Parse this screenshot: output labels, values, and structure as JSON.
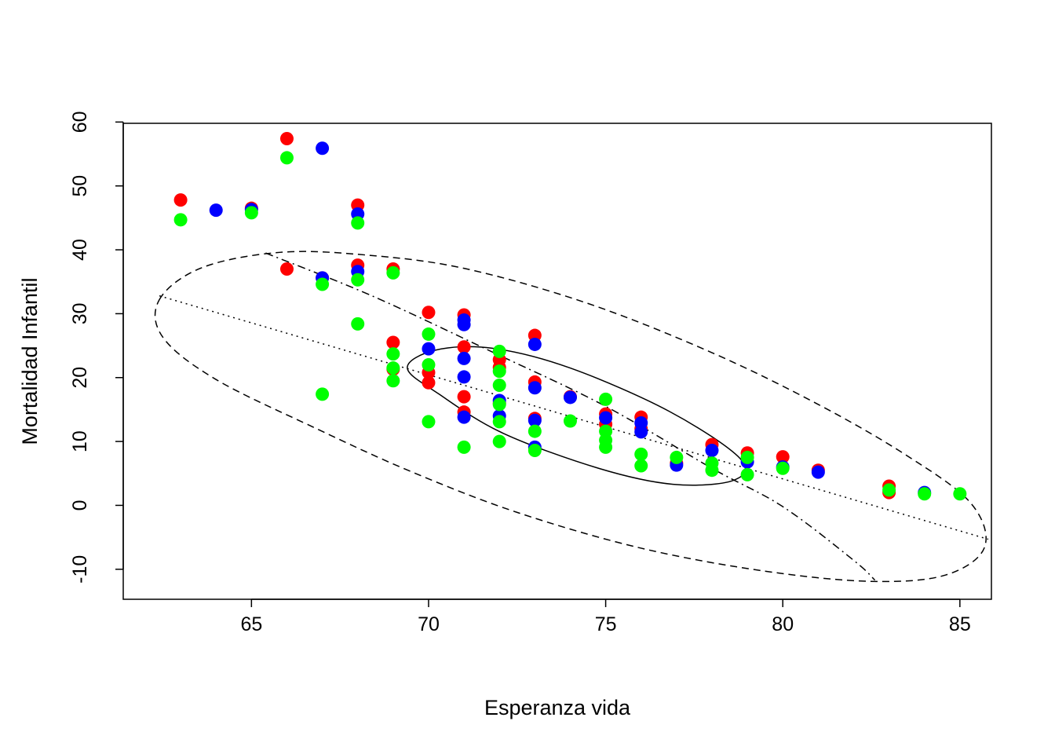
{
  "chart_data": {
    "type": "scatter",
    "title": "",
    "xlabel": "Esperanza vida",
    "ylabel": "Mortalidad Infantil",
    "xlim": [
      61.38,
      85.89
    ],
    "ylim": [
      -14.7,
      59.8
    ],
    "xticks": [
      65,
      70,
      75,
      80,
      85
    ],
    "yticks": [
      -10,
      0,
      10,
      20,
      30,
      40,
      50,
      60
    ],
    "grid": false,
    "legend": "none",
    "colors": {
      "red": "#FF0000",
      "blue": "#0000FF",
      "green": "#00FF00"
    },
    "series": [
      {
        "color": "#FF0000",
        "points": [
          [
            63,
            47.8
          ],
          [
            65,
            46.5
          ],
          [
            66,
            57.4
          ],
          [
            66,
            37.0
          ],
          [
            67,
            35.6
          ],
          [
            68,
            47.0
          ],
          [
            68,
            37.6
          ],
          [
            69,
            37.0
          ],
          [
            69,
            25.5
          ],
          [
            69,
            21.3
          ],
          [
            70,
            30.2
          ],
          [
            70,
            20.8
          ],
          [
            70,
            19.2
          ],
          [
            71,
            29.8
          ],
          [
            71,
            24.8
          ],
          [
            71,
            17.0
          ],
          [
            71,
            14.6
          ],
          [
            72,
            22.8
          ],
          [
            72,
            21.6
          ],
          [
            72,
            16.0
          ],
          [
            73,
            26.6
          ],
          [
            73,
            19.3
          ],
          [
            73,
            13.6
          ],
          [
            74,
            17.0
          ],
          [
            75,
            14.3
          ],
          [
            75,
            12.7
          ],
          [
            76,
            13.8
          ],
          [
            76,
            12.0
          ],
          [
            77,
            6.6
          ],
          [
            78,
            9.5
          ],
          [
            79,
            8.2
          ],
          [
            80,
            7.6
          ],
          [
            81,
            5.5
          ],
          [
            83,
            3.0
          ],
          [
            83,
            2.0
          ]
        ]
      },
      {
        "color": "#0000FF",
        "points": [
          [
            64,
            46.2
          ],
          [
            65,
            46.3
          ],
          [
            67,
            55.9
          ],
          [
            67,
            35.6
          ],
          [
            68,
            45.6
          ],
          [
            68,
            36.6
          ],
          [
            70,
            24.5
          ],
          [
            71,
            29.0
          ],
          [
            71,
            28.3
          ],
          [
            71,
            23.0
          ],
          [
            71,
            20.1
          ],
          [
            71,
            13.8
          ],
          [
            72,
            16.4
          ],
          [
            72,
            14.0
          ],
          [
            73,
            25.2
          ],
          [
            73,
            18.4
          ],
          [
            73,
            13.3
          ],
          [
            73,
            9.1
          ],
          [
            74,
            16.9
          ],
          [
            75,
            13.7
          ],
          [
            76,
            12.9
          ],
          [
            76,
            11.5
          ],
          [
            77,
            6.3
          ],
          [
            78,
            8.6
          ],
          [
            79,
            6.8
          ],
          [
            80,
            6.0
          ],
          [
            81,
            5.2
          ],
          [
            84,
            2.0
          ]
        ]
      },
      {
        "color": "#00FF00",
        "points": [
          [
            63,
            44.7
          ],
          [
            65,
            45.8
          ],
          [
            66,
            54.4
          ],
          [
            67,
            34.6
          ],
          [
            67,
            17.4
          ],
          [
            68,
            44.2
          ],
          [
            68,
            35.3
          ],
          [
            68,
            28.4
          ],
          [
            69,
            36.4
          ],
          [
            69,
            23.7
          ],
          [
            69,
            21.5
          ],
          [
            69,
            19.5
          ],
          [
            70,
            26.8
          ],
          [
            70,
            22.0
          ],
          [
            70,
            13.1
          ],
          [
            71,
            9.1
          ],
          [
            72,
            24.1
          ],
          [
            72,
            21.0
          ],
          [
            72,
            18.8
          ],
          [
            72,
            15.8
          ],
          [
            72,
            13.1
          ],
          [
            72,
            10.0
          ],
          [
            73,
            11.6
          ],
          [
            73,
            8.6
          ],
          [
            74,
            13.2
          ],
          [
            75,
            16.6
          ],
          [
            75,
            11.6
          ],
          [
            75,
            10.2
          ],
          [
            75,
            9.1
          ],
          [
            76,
            8.0
          ],
          [
            76,
            6.2
          ],
          [
            77,
            7.5
          ],
          [
            78,
            6.6
          ],
          [
            78,
            5.5
          ],
          [
            79,
            7.5
          ],
          [
            79,
            4.8
          ],
          [
            80,
            5.8
          ],
          [
            83,
            2.4
          ],
          [
            84,
            1.8
          ],
          [
            85,
            1.8
          ]
        ]
      }
    ],
    "ellipses": [
      {
        "style": "solid",
        "path": [
          [
            69.4,
            21.5
          ],
          [
            70.2,
            24.3
          ],
          [
            71.8,
            24.6
          ],
          [
            74.0,
            21.5
          ],
          [
            76.8,
            14.7
          ],
          [
            78.8,
            7.3
          ],
          [
            78.6,
            3.9
          ],
          [
            76.9,
            3.3
          ],
          [
            74.8,
            5.8
          ],
          [
            72.1,
            11.3
          ],
          [
            70.3,
            17.4
          ],
          [
            69.4,
            21.5
          ]
        ]
      },
      {
        "style": "dashed",
        "path": [
          [
            62.4,
            32.2
          ],
          [
            63.6,
            37.2
          ],
          [
            65.8,
            39.6
          ],
          [
            68.2,
            39.2
          ],
          [
            71.0,
            37.1
          ],
          [
            74.5,
            31.6
          ],
          [
            78.0,
            23.9
          ],
          [
            81.0,
            15.8
          ],
          [
            83.5,
            7.8
          ],
          [
            85.3,
            0.4
          ],
          [
            85.7,
            -6.5
          ],
          [
            84.6,
            -10.9
          ],
          [
            82.5,
            -11.9
          ],
          [
            79.5,
            -10.3
          ],
          [
            76.0,
            -6.7
          ],
          [
            72.5,
            -1.1
          ],
          [
            69.5,
            5.3
          ],
          [
            66.8,
            12.1
          ],
          [
            64.0,
            19.7
          ],
          [
            62.5,
            26.3
          ],
          [
            62.4,
            32.2
          ]
        ]
      }
    ],
    "lines": [
      {
        "style": "dotted",
        "points": [
          [
            62.4,
            32.8
          ],
          [
            85.8,
            -5.3
          ]
        ]
      },
      {
        "style": "dashdot",
        "points": [
          [
            65.4,
            39.5
          ],
          [
            68.4,
            32.8
          ],
          [
            71.8,
            24.0
          ],
          [
            75.0,
            15.5
          ],
          [
            78.0,
            5.8
          ],
          [
            80.0,
            -0.2
          ],
          [
            82.0,
            -8.6
          ],
          [
            82.6,
            -11.7
          ]
        ]
      }
    ]
  }
}
